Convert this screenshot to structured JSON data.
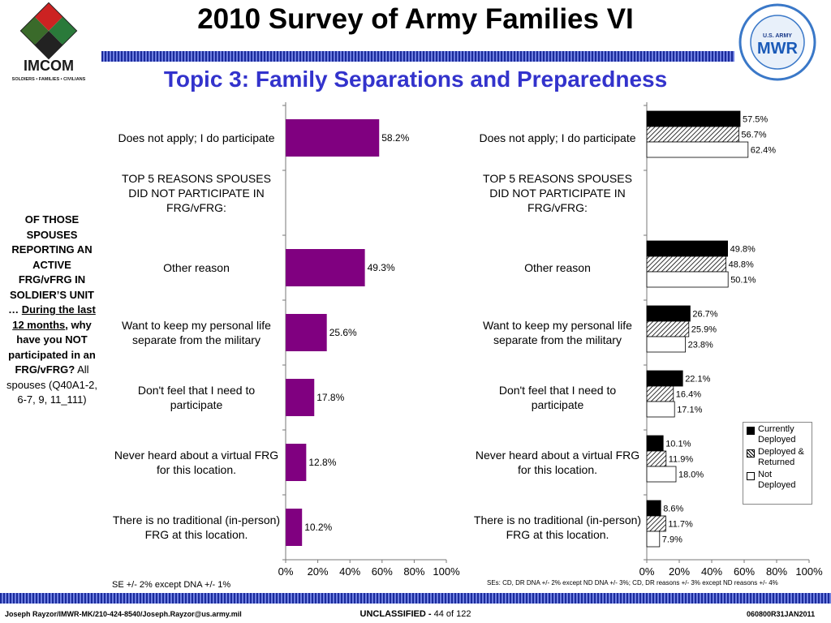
{
  "header": {
    "title": "2010 Survey of Army Families VI",
    "subtitle": "Topic 3: Family Separations and Preparedness",
    "left_logo_text": "IMCOM",
    "left_logo_tagline": "SOLDIERS • FAMILIES • CIVILIANS",
    "right_logo_text": "MWR",
    "right_logo_top": "U.S. ARMY"
  },
  "question": {
    "line1": "OF THOSE SPOUSES REPORTING AN ACTIVE FRG/vFRG IN SOLDIER’S UNIT …",
    "underlined": "During the last 12 months",
    "line2": ", why have you NOT participated in an FRG/vFRG?",
    "line3": "All spouses (Q40A1-2, 6-7, 9, 11_111)"
  },
  "chart_data": [
    {
      "type": "bar",
      "orientation": "horizontal",
      "categories": [
        "Does not apply; I do participate",
        "TOP 5 REASONS SPOUSES DID NOT PARTICIPATE IN FRG/vFRG:",
        "Other reason",
        "Want to keep my personal life separate from the military",
        "Don't feel that I need to participate",
        "Never heard about a virtual FRG for this location.",
        "There is no traditional (in-person) FRG at this location."
      ],
      "category_lines": [
        [
          "Does not apply; I do participate"
        ],
        [
          "TOP 5 REASONS SPOUSES",
          "DID NOT PARTICIPATE IN",
          "FRG/vFRG:"
        ],
        [
          "Other reason"
        ],
        [
          "Want to keep my personal life",
          "separate from the military"
        ],
        [
          "Don't feel that I need to",
          "participate"
        ],
        [
          "Never heard about a virtual FRG",
          "for this location."
        ],
        [
          "There is no traditional (in-person)",
          "FRG at this location."
        ]
      ],
      "values": [
        58.2,
        null,
        49.3,
        25.6,
        17.8,
        12.8,
        10.2
      ],
      "value_labels": [
        "58.2%",
        "",
        "49.3%",
        "25.6%",
        "17.8%",
        "12.8%",
        "10.2%"
      ],
      "xlim": [
        0,
        100
      ],
      "xticks": [
        "0%",
        "20%",
        "40%",
        "60%",
        "80%",
        "100%"
      ],
      "bar_color": "#800080",
      "note": "SE +/- 2% except DNA +/- 1%"
    },
    {
      "type": "bar",
      "orientation": "horizontal",
      "categories": [
        "Does not apply; I do participate",
        "TOP 5 REASONS SPOUSES DID NOT PARTICIPATE IN FRG/vFRG:",
        "Other reason",
        "Want to keep my personal life separate from the military",
        "Don't feel that I need to participate",
        "Never heard about a virtual FRG for this location.",
        "There is no traditional (in-person) FRG at this location."
      ],
      "series": [
        {
          "name": "Currently Deployed",
          "values": [
            57.5,
            null,
            49.8,
            26.7,
            22.1,
            10.1,
            8.6
          ],
          "labels": [
            "57.5%",
            "",
            "49.8%",
            "26.7%",
            "22.1%",
            "10.1%",
            "8.6%"
          ]
        },
        {
          "name": "Deployed & Returned",
          "values": [
            56.7,
            null,
            48.8,
            25.9,
            16.4,
            11.9,
            11.7
          ],
          "labels": [
            "56.7%",
            "",
            "48.8%",
            "25.9%",
            "16.4%",
            "11.9%",
            "11.7%"
          ]
        },
        {
          "name": "Not Deployed",
          "values": [
            62.4,
            null,
            50.1,
            23.8,
            17.1,
            18.0,
            7.9
          ],
          "labels": [
            "62.4%",
            "",
            "50.1%",
            "23.8%",
            "17.1%",
            "18.0%",
            "7.9%"
          ]
        }
      ],
      "legend_lines": [
        [
          "Currently",
          "Deployed"
        ],
        [
          "Deployed &",
          "Returned"
        ],
        [
          "Not",
          "Deployed"
        ]
      ],
      "xlim": [
        0,
        100
      ],
      "xticks": [
        "0%",
        "20%",
        "40%",
        "60%",
        "80%",
        "100%"
      ],
      "legend_position": "bottom-right",
      "note": "SEs: CD, DR DNA +/- 2% except  ND DNA +/- 3%; CD, DR reasons +/- 3% except ND reasons +/- 4%"
    }
  ],
  "footer": {
    "left": "Joseph Rayzor/IMWR-MK/210-424-8540/Joseph.Rayzor@us.army.mil",
    "center_bold": "UNCLASSIFIED - ",
    "center_rest": "44 of 122",
    "right": "060800R31JAN2011"
  }
}
